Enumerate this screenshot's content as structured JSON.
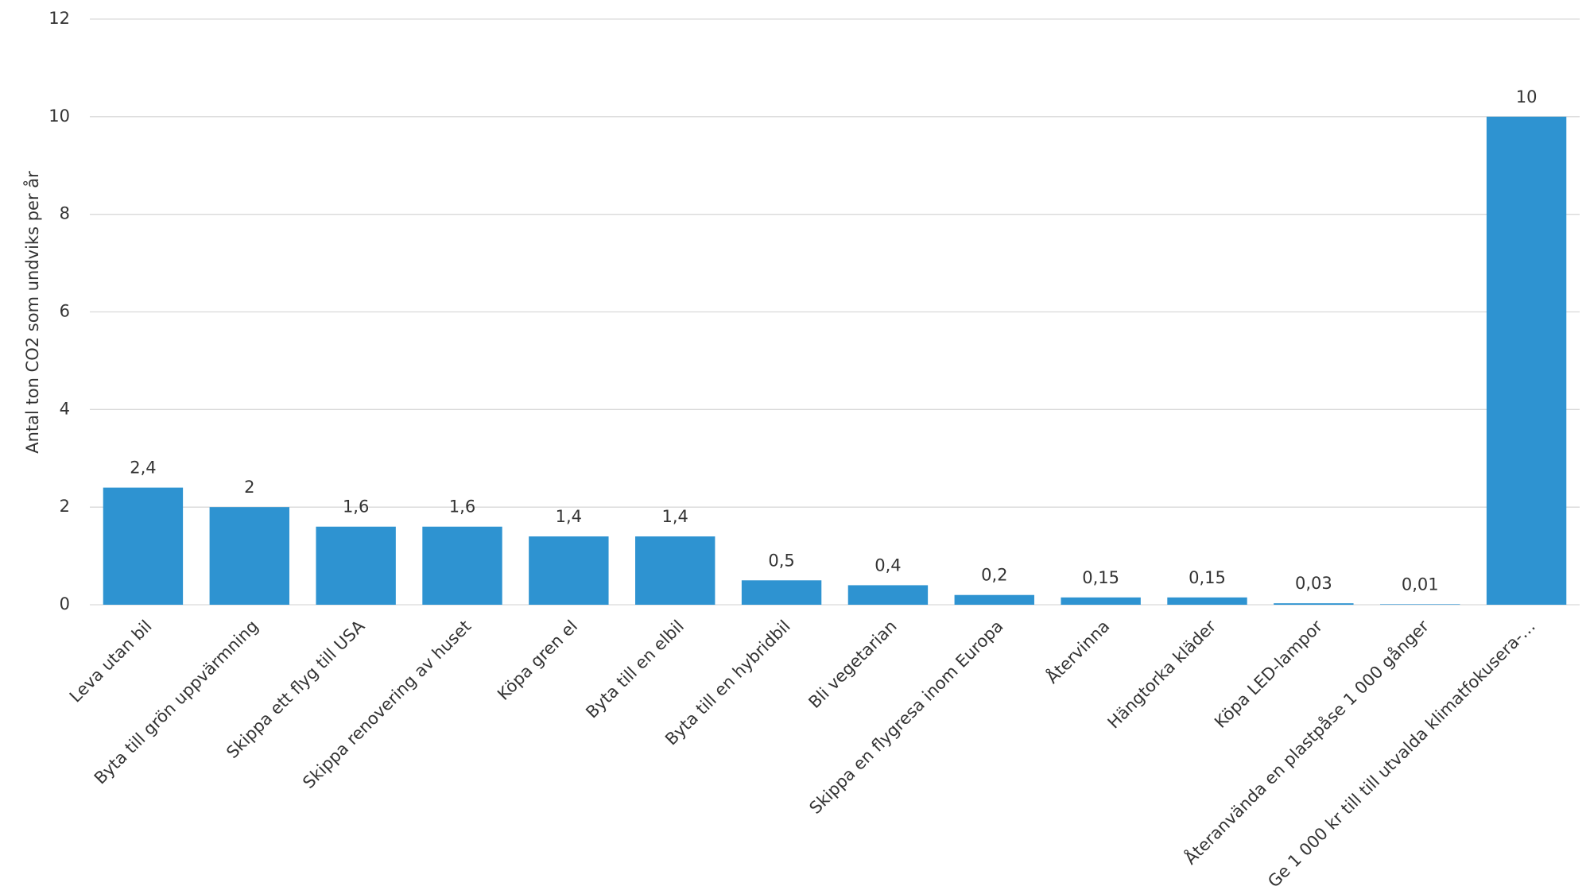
{
  "chart_data": {
    "type": "bar",
    "y_label": "Antal ton CO2 som undviks per år",
    "categories": [
      "Leva utan bil",
      "Byta till grön uppvärmning",
      "Skippa ett flyg till USA",
      "Skippa renovering av huset",
      "Köpa gren el",
      "Byta till en elbil",
      "Byta till en hybridbil",
      "Bli vegetarian",
      "Skippa en flygresa inom Europa",
      "Återvinna",
      "Hängtorka kläder",
      "Köpa LED-lampor",
      "Återanvända en plastpåse 1 000 gånger",
      "Ge 1 000 kr till till utvalda klimatfokusera-…"
    ],
    "values": [
      2.4,
      2,
      1.6,
      1.6,
      1.4,
      1.4,
      0.5,
      0.4,
      0.2,
      0.15,
      0.15,
      0.03,
      0.01,
      10
    ],
    "value_labels": [
      "2,4",
      "2",
      "1,6",
      "1,6",
      "1,4",
      "1,4",
      "0,5",
      "0,4",
      "0,2",
      "0,15",
      "0,15",
      "0,03",
      "0,01",
      "10"
    ],
    "color": "#2e93d1",
    "ylim": [
      0,
      12
    ],
    "yticks": [
      0,
      2,
      4,
      6,
      8,
      10,
      12
    ],
    "grid": true
  }
}
